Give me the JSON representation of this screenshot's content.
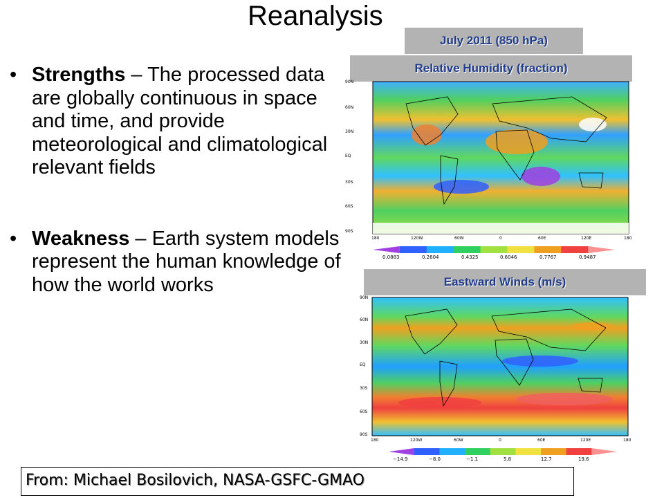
{
  "slide": {
    "title": "Reanalysis",
    "bullets": [
      {
        "lead": "Strengths",
        "rest": " – The processed data are globally continuous in space and time, and provide meteorological and climatological relevant fields"
      },
      {
        "lead": "Weakness",
        "rest": " – Earth system models represent the human knowledge of how the world works"
      }
    ],
    "credit": "From: Michael Bosilovich, NASA-GSFC-GMAO"
  },
  "map_panel": {
    "date_label": "July 2011 (850 hPa)",
    "label_color": "#1f3b8a",
    "box_color": "#b3b3b3",
    "rh_map": {
      "title": "Relative Humidity (fraction)",
      "lat_labels": [
        "90N",
        "60N",
        "30N",
        "EQ",
        "30S",
        "60S",
        "90S"
      ],
      "lon_labels": [
        "180",
        "120W",
        "60W",
        "0",
        "60E",
        "120E",
        "180"
      ],
      "colorbar_ticks": [
        "0.0883",
        "0.2604",
        "0.4325",
        "0.6046",
        "0.7767",
        "0.9487"
      ]
    },
    "wind_map": {
      "title": "Eastward Winds (m/s)",
      "lat_labels": [
        "90N",
        "60N",
        "30N",
        "EQ",
        "30S",
        "60S",
        "90S"
      ],
      "lon_labels": [
        "180",
        "120W",
        "60W",
        "0",
        "60E",
        "120E",
        "180"
      ],
      "colorbar_ticks": [
        "−14.9",
        "−8.0",
        "−1.1",
        "5.8",
        "12.7",
        "19.6"
      ]
    },
    "colorbar_colors": [
      "#a040e0",
      "#3060ff",
      "#20b0ff",
      "#30d060",
      "#a0e040",
      "#f0e040",
      "#f0a020",
      "#f04040",
      "#ff9090"
    ]
  }
}
